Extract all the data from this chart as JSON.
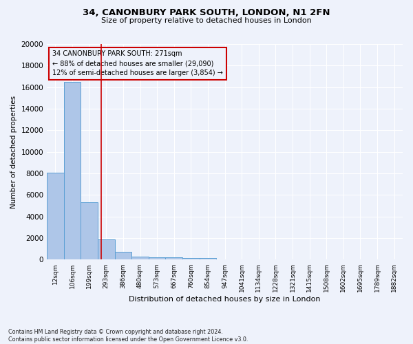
{
  "title1": "34, CANONBURY PARK SOUTH, LONDON, N1 2FN",
  "title2": "Size of property relative to detached houses in London",
  "xlabel": "Distribution of detached houses by size in London",
  "ylabel": "Number of detached properties",
  "footnote": "Contains HM Land Registry data © Crown copyright and database right 2024.\nContains public sector information licensed under the Open Government Licence v3.0.",
  "bar_labels": [
    "12sqm",
    "106sqm",
    "199sqm",
    "293sqm",
    "386sqm",
    "480sqm",
    "573sqm",
    "667sqm",
    "760sqm",
    "854sqm",
    "947sqm",
    "1041sqm",
    "1134sqm",
    "1228sqm",
    "1321sqm",
    "1415sqm",
    "1508sqm",
    "1602sqm",
    "1695sqm",
    "1789sqm",
    "1882sqm"
  ],
  "bar_values": [
    8100,
    16500,
    5300,
    1850,
    700,
    310,
    220,
    200,
    170,
    150,
    0,
    0,
    0,
    0,
    0,
    0,
    0,
    0,
    0,
    0,
    0
  ],
  "bar_color": "#aec6e8",
  "bar_edge_color": "#5a9fd4",
  "vline_x": 2.72,
  "vline_color": "#cc0000",
  "property_size": "271sqm",
  "pct_smaller": "88%",
  "n_smaller": "29,090",
  "pct_larger": "12%",
  "n_larger": "3,854",
  "annotation_box_color": "#cc0000",
  "ylim": [
    0,
    20000
  ],
  "yticks": [
    0,
    2000,
    4000,
    6000,
    8000,
    10000,
    12000,
    14000,
    16000,
    18000,
    20000
  ],
  "bg_color": "#eef2fb",
  "grid_color": "#ffffff"
}
